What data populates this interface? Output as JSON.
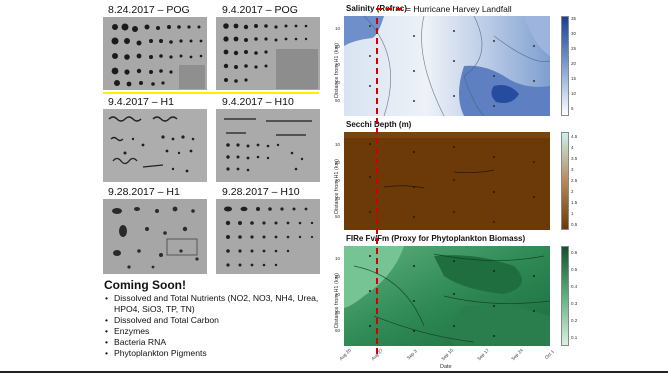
{
  "captions": {
    "c1": "8.24.2017 – POG",
    "c2": "9.4.2017 – POG",
    "c3": "9.4.2017 – H1",
    "c4": "9.4.2017 – H10",
    "c5": "9.28.2017 – H1",
    "c6": "9.28.2017 – H10"
  },
  "coming_soon": {
    "heading": "Coming Soon!",
    "items": [
      "Dissolved and Total Nutrients (NO2, NO3, NH4, Urea, HPO4, SiO3, TP, TN)",
      "Dissolved and Total Carbon",
      "Enzymes",
      "Bacteria RNA",
      "Phytoplankton Pigments"
    ]
  },
  "figure": {
    "legend_label": "= Hurricane Harvey Landfall",
    "panels": [
      {
        "title": "Salinity (Refrac)",
        "ylabel": "Distance from H1 (km)",
        "colors": [
          "#1a3f94",
          "#ffffff"
        ]
      },
      {
        "title": "Secchi Depth (m)",
        "ylabel": "Distance from H1 (km)",
        "colors": [
          "#6b3a07",
          "#c9f0ec"
        ]
      },
      {
        "title": "FIRe Fv/Fm (Proxy for Phytoplankton Biomass)",
        "ylabel": "Distance from H1 (km)",
        "colors": [
          "#14512c",
          "#d8f2e0"
        ]
      }
    ],
    "yticks": [
      "10",
      "20",
      "30",
      "40",
      "50"
    ],
    "xticks": [
      "Aug 20",
      "Aug 27",
      "Sep 3",
      "Sep 10",
      "Sep 17",
      "Sep 24",
      "Oct 1"
    ],
    "xlabel": "Date",
    "cbar_ticks": {
      "salinity": [
        "35",
        "30",
        "25",
        "20",
        "15",
        "10",
        "5"
      ],
      "secchi": [
        "4.5",
        "4",
        "3.5",
        "3",
        "2.5",
        "2",
        "1.5",
        "1",
        "0.5"
      ],
      "fvfm": [
        "0.6",
        "0.5",
        "0.4",
        "0.3",
        "0.2",
        "0.1"
      ]
    }
  }
}
